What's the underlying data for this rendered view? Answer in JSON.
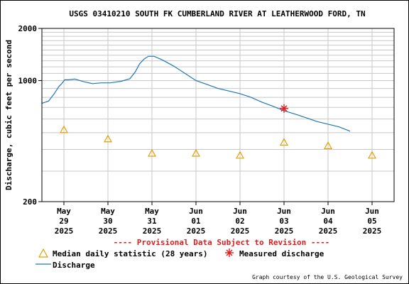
{
  "chart_data": {
    "type": "line",
    "title": "USGS 03410210 SOUTH FK CUMBERLAND RIVER AT LEATHERWOOD FORD, TN",
    "ylabel": "Discharge, cubic feet per second",
    "xlabel": "",
    "yscale": "log",
    "ylim": [
      200,
      2000
    ],
    "ytick_labels": [
      "200",
      "1000",
      "2000"
    ],
    "yticks": [
      200,
      1000,
      2000
    ],
    "y_minor_gridlines": [
      300,
      400,
      500,
      600,
      700,
      800,
      900,
      1100,
      1200,
      1300,
      1400,
      1500,
      1600,
      1700,
      1800,
      1900
    ],
    "xlim": [
      0,
      8
    ],
    "x_ticks": [
      {
        "x": 0.5,
        "line1": "May",
        "line2": "29",
        "line3": "2025"
      },
      {
        "x": 1.5,
        "line1": "May",
        "line2": "30",
        "line3": "2025"
      },
      {
        "x": 2.5,
        "line1": "May",
        "line2": "31",
        "line3": "2025"
      },
      {
        "x": 3.5,
        "line1": "Jun",
        "line2": "01",
        "line3": "2025"
      },
      {
        "x": 4.5,
        "line1": "Jun",
        "line2": "02",
        "line3": "2025"
      },
      {
        "x": 5.5,
        "line1": "Jun",
        "line2": "03",
        "line3": "2025"
      },
      {
        "x": 6.5,
        "line1": "Jun",
        "line2": "04",
        "line3": "2025"
      },
      {
        "x": 7.5,
        "line1": "Jun",
        "line2": "05",
        "line3": "2025"
      }
    ],
    "grid": true,
    "series": [
      {
        "name": "Discharge",
        "color": "#1f78b4",
        "x": [
          0.0,
          0.15,
          0.28,
          0.38,
          0.45,
          0.52,
          0.6,
          0.75,
          0.95,
          1.15,
          1.35,
          1.55,
          1.8,
          2.0,
          2.12,
          2.22,
          2.32,
          2.42,
          2.55,
          2.75,
          3.0,
          3.25,
          3.5,
          3.75,
          4.0,
          4.25,
          4.5,
          4.75,
          5.0,
          5.25,
          5.5,
          5.75,
          6.0,
          6.25,
          6.5,
          6.75,
          7.0
        ],
        "y": [
          740,
          760,
          840,
          920,
          960,
          1010,
          1010,
          1020,
          985,
          960,
          970,
          970,
          990,
          1025,
          1120,
          1250,
          1330,
          1380,
          1380,
          1310,
          1210,
          1100,
          1000,
          950,
          900,
          870,
          840,
          800,
          750,
          710,
          670,
          640,
          610,
          580,
          560,
          540,
          510
        ]
      },
      {
        "name": "Median daily statistic (28 years)",
        "color": "#e69f00",
        "marker": "triangle",
        "x": [
          0.5,
          1.5,
          2.5,
          3.5,
          4.5,
          5.5,
          6.5,
          7.5
        ],
        "y": [
          520,
          460,
          380,
          380,
          370,
          440,
          420,
          370
        ]
      },
      {
        "name": "Measured discharge",
        "color": "#e31a1c",
        "marker": "asterisk",
        "x": [
          5.5
        ],
        "y": [
          690
        ]
      }
    ],
    "notes": {
      "provisional": "---- Provisional Data Subject to Revision ----",
      "credit": "Graph courtesy of the U.S. Geological Survey"
    },
    "legend": {
      "placement": "bottom",
      "items": [
        {
          "label": "Median daily statistic (28 years)",
          "symbol": "triangle"
        },
        {
          "label": "Measured discharge",
          "symbol": "asterisk"
        },
        {
          "label": "Discharge",
          "symbol": "line"
        }
      ]
    },
    "colors": {
      "median": "#e69f00",
      "measured": "#e31a1c",
      "discharge": "#1f78b4",
      "grid": "#c8c8c8",
      "provisional": "#e31a1c"
    }
  }
}
